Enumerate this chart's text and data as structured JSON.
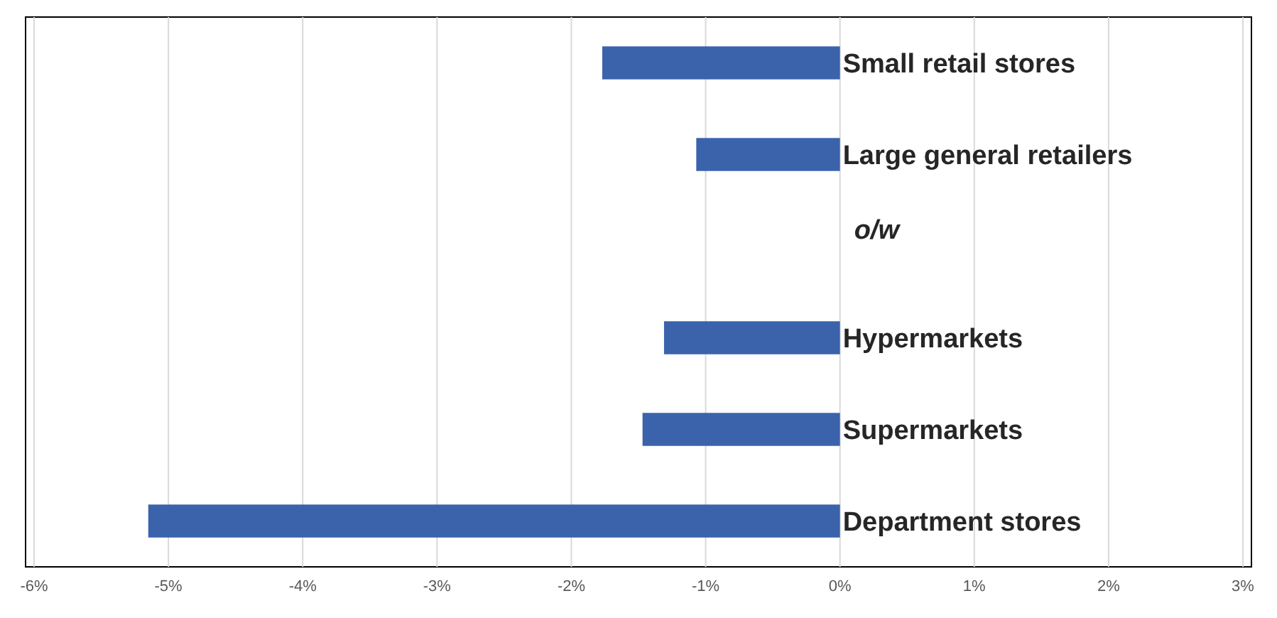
{
  "chart_data": {
    "type": "bar",
    "orientation": "horizontal",
    "categories": [
      "Small retail stores",
      "Large general retailers",
      "o/w",
      "Hypermarkets",
      "Supermarkets",
      "Department stores"
    ],
    "values": [
      -1.77,
      -1.07,
      null,
      -1.31,
      -1.47,
      -5.15
    ],
    "color": "#3a63ab",
    "xlim": [
      -6,
      3
    ],
    "xticks": [
      {
        "value": -6,
        "label": "-6%"
      },
      {
        "value": -5,
        "label": "-5%"
      },
      {
        "value": -4,
        "label": "-4%"
      },
      {
        "value": -3,
        "label": "-3%"
      },
      {
        "value": -2,
        "label": "-2%"
      },
      {
        "value": -1,
        "label": "-1%"
      },
      {
        "value": 0,
        "label": "0%"
      },
      {
        "value": 1,
        "label": "1%"
      },
      {
        "value": 2,
        "label": "2%"
      },
      {
        "value": 3,
        "label": "3%"
      }
    ],
    "grid": "x"
  }
}
